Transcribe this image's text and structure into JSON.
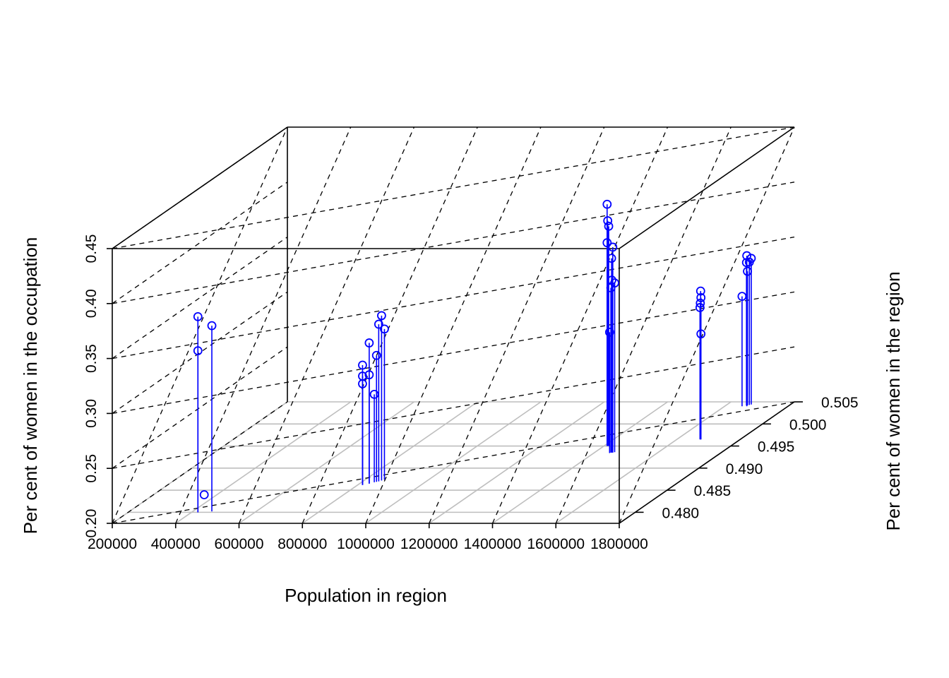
{
  "chart_data": {
    "type": "scatter3d",
    "xlabel": "Population in region",
    "ylabel": "Per cent of women in the region",
    "zlabel": "Per cent of women in the occupation",
    "xlim": [
      200000,
      1800000
    ],
    "ylim": [
      0.4775,
      0.505
    ],
    "zlim": [
      0.2,
      0.45
    ],
    "x_ticks": [
      "200000",
      "400000",
      "600000",
      "800000",
      "1000000",
      "1200000",
      "1400000",
      "1600000",
      "1800000"
    ],
    "y_ticks": [
      "0.480",
      "0.485",
      "0.490",
      "0.495",
      "0.500",
      "0.505"
    ],
    "z_ticks": [
      "0.20",
      "0.25",
      "0.30",
      "0.35",
      "0.40",
      "0.45"
    ],
    "grid": true,
    "point_color": "#0000ff",
    "series": [
      {
        "points": [
          {
            "x": 420000,
            "y": 0.48,
            "z": 0.378
          },
          {
            "x": 420000,
            "y": 0.48,
            "z": 0.347
          },
          {
            "x": 460000,
            "y": 0.4802,
            "z": 0.369
          },
          {
            "x": 460000,
            "y": 0.479,
            "z": 0.22
          },
          {
            "x": 815000,
            "y": 0.4862,
            "z": 0.299
          },
          {
            "x": 815000,
            "y": 0.4862,
            "z": 0.292
          },
          {
            "x": 815000,
            "y": 0.4862,
            "z": 0.309
          },
          {
            "x": 830000,
            "y": 0.4865,
            "z": 0.328
          },
          {
            "x": 830000,
            "y": 0.4865,
            "z": 0.299
          },
          {
            "x": 840000,
            "y": 0.4868,
            "z": 0.28
          },
          {
            "x": 850000,
            "y": 0.487,
            "z": 0.343
          },
          {
            "x": 855000,
            "y": 0.4872,
            "z": 0.35
          },
          {
            "x": 860000,
            "y": 0.4874,
            "z": 0.337
          },
          {
            "x": 845000,
            "y": 0.4869,
            "z": 0.315
          },
          {
            "x": 1410000,
            "y": 0.495,
            "z": 0.42
          },
          {
            "x": 1412000,
            "y": 0.495,
            "z": 0.405
          },
          {
            "x": 1415000,
            "y": 0.495,
            "z": 0.4
          },
          {
            "x": 1410000,
            "y": 0.495,
            "z": 0.385
          },
          {
            "x": 1420000,
            "y": 0.4952,
            "z": 0.37
          },
          {
            "x": 1458000,
            "y": 0.4935,
            "z": 0.387
          },
          {
            "x": 1455000,
            "y": 0.4935,
            "z": 0.357
          },
          {
            "x": 1462000,
            "y": 0.4936,
            "z": 0.354
          },
          {
            "x": 1452000,
            "y": 0.4935,
            "z": 0.35
          },
          {
            "x": 1450000,
            "y": 0.4934,
            "z": 0.31
          },
          {
            "x": 1675000,
            "y": 0.4965,
            "z": 0.335
          },
          {
            "x": 1676000,
            "y": 0.4965,
            "z": 0.329
          },
          {
            "x": 1674000,
            "y": 0.4965,
            "z": 0.324
          },
          {
            "x": 1673000,
            "y": 0.4965,
            "z": 0.32
          },
          {
            "x": 1676000,
            "y": 0.4965,
            "z": 0.296
          },
          {
            "x": 1655000,
            "y": 0.504,
            "z": 0.3
          },
          {
            "x": 1665000,
            "y": 0.5042,
            "z": 0.33
          },
          {
            "x": 1668000,
            "y": 0.5042,
            "z": 0.322
          },
          {
            "x": 1672000,
            "y": 0.5043,
            "z": 0.33
          },
          {
            "x": 1676000,
            "y": 0.5044,
            "z": 0.333
          },
          {
            "x": 1670000,
            "y": 0.504,
            "z": 0.337
          }
        ]
      }
    ]
  }
}
